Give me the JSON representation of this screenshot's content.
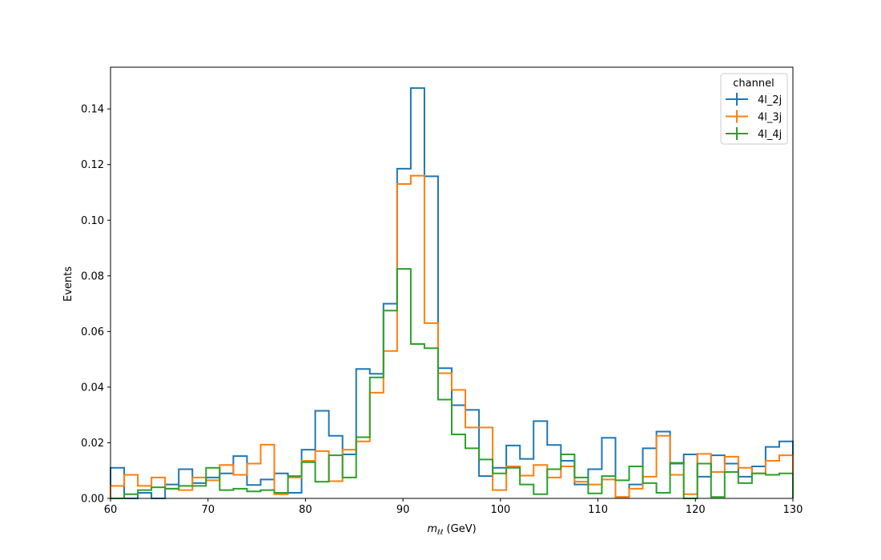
{
  "chart_data": {
    "type": "line",
    "style": "step-histogram",
    "xlabel": "m_ℓℓ (GeV)",
    "xlabel_main": "m",
    "xlabel_sub": "ℓℓ",
    "xlabel_unit": " (GeV)",
    "ylabel": "Events",
    "xlim": [
      60,
      130
    ],
    "ylim": [
      0,
      0.155
    ],
    "xticks": [
      60,
      70,
      80,
      90,
      100,
      110,
      120,
      130
    ],
    "yticks": [
      0.0,
      0.02,
      0.04,
      0.06,
      0.08,
      0.1,
      0.12,
      0.14
    ],
    "xtick_labels": [
      "60",
      "70",
      "80",
      "90",
      "100",
      "110",
      "120",
      "130"
    ],
    "ytick_labels": [
      "0.00",
      "0.02",
      "0.04",
      "0.06",
      "0.08",
      "0.10",
      "0.12",
      "0.14"
    ],
    "bins": {
      "start": 60,
      "width": 1.4,
      "count": 50
    },
    "legend": {
      "title": "channel",
      "location": "top-right"
    },
    "series": [
      {
        "name": "4l_2j",
        "color": "#1f77b4",
        "values": [
          0.011,
          0.0,
          0.002,
          0.0,
          0.005,
          0.0105,
          0.0055,
          0.0075,
          0.009,
          0.0152,
          0.0048,
          0.0068,
          0.009,
          0.002,
          0.0175,
          0.0315,
          0.0225,
          0.0158,
          0.0465,
          0.0448,
          0.07,
          0.1185,
          0.1475,
          0.1158,
          0.0468,
          0.0335,
          0.0318,
          0.008,
          0.011,
          0.019,
          0.0142,
          0.0278,
          0.0192,
          0.0135,
          0.005,
          0.0105,
          0.0218,
          0.0005,
          0.005,
          0.018,
          0.024,
          0.0125,
          0.0158,
          0.0078,
          0.0155,
          0.0125,
          0.0078,
          0.0115,
          0.0185,
          0.0205
        ]
      },
      {
        "name": "4l_3j",
        "color": "#ff7f0e",
        "values": [
          0.0045,
          0.0085,
          0.0045,
          0.0075,
          0.0035,
          0.003,
          0.0075,
          0.0065,
          0.012,
          0.0085,
          0.0125,
          0.0193,
          0.0015,
          0.0075,
          0.0135,
          0.017,
          0.0062,
          0.0175,
          0.0205,
          0.038,
          0.053,
          0.113,
          0.116,
          0.063,
          0.045,
          0.039,
          0.0255,
          0.0255,
          0.003,
          0.0115,
          0.0082,
          0.012,
          0.0075,
          0.0115,
          0.006,
          0.005,
          0.0068,
          0.0005,
          0.0035,
          0.0078,
          0.0225,
          0.0085,
          0.0015,
          0.016,
          0.0095,
          0.015,
          0.011,
          0.009,
          0.0135,
          0.0155
        ]
      },
      {
        "name": "4l_4j",
        "color": "#2ca02c",
        "values": [
          0.0,
          0.0015,
          0.003,
          0.004,
          0.0035,
          0.0045,
          0.0045,
          0.011,
          0.003,
          0.0035,
          0.0025,
          0.003,
          0.002,
          0.008,
          0.013,
          0.006,
          0.0155,
          0.0075,
          0.022,
          0.0435,
          0.0675,
          0.0825,
          0.0555,
          0.054,
          0.0355,
          0.023,
          0.018,
          0.014,
          0.009,
          0.011,
          0.005,
          0.0015,
          0.0105,
          0.0158,
          0.0075,
          0.0018,
          0.008,
          0.0065,
          0.0115,
          0.0055,
          0.002,
          0.0128,
          0.0,
          0.0125,
          0.0005,
          0.0095,
          0.0055,
          0.009,
          0.0085,
          0.009
        ]
      }
    ]
  }
}
